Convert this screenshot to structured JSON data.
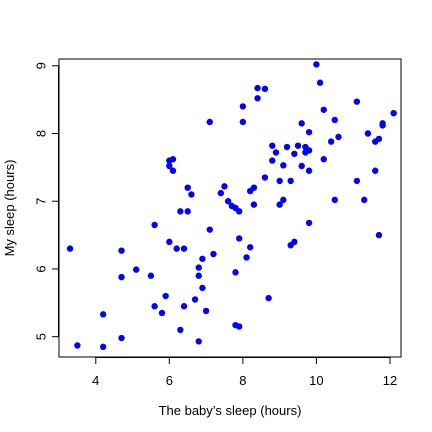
{
  "chart_data": {
    "type": "scatter",
    "title": "",
    "xlabel": "The baby’s sleep (hours)",
    "ylabel": "My sleep (hours)",
    "xlim": [
      3.0,
      12.3
    ],
    "ylim": [
      4.7,
      9.1
    ],
    "x_ticks": [
      "4",
      "6",
      "8",
      "10",
      "12"
    ],
    "x_tick_values": [
      4,
      6,
      8,
      10,
      12
    ],
    "y_ticks": [
      "5",
      "6",
      "7",
      "8",
      "9"
    ],
    "y_tick_values": [
      5,
      6,
      7,
      8,
      9
    ],
    "grid": false,
    "legend": "none",
    "point_color": "#0000ff",
    "series": [
      {
        "x": [
          3.3,
          3.5,
          4.2,
          4.2,
          4.7,
          4.7,
          4.7,
          5.1,
          5.5,
          5.6,
          5.6,
          5.8,
          5.9,
          6.0,
          6.0,
          6.0,
          6.1,
          6.1,
          6.2,
          6.3,
          6.3,
          6.4,
          6.4,
          6.5,
          6.5,
          6.6,
          6.7,
          6.8,
          6.8,
          6.8,
          6.9,
          6.9,
          7.0,
          7.1,
          7.1,
          7.2,
          7.4,
          7.5,
          7.6,
          7.7,
          7.8,
          7.8,
          7.8,
          7.9,
          7.9,
          7.9,
          8.0,
          8.0,
          8.1,
          8.2,
          8.2,
          8.3,
          8.3,
          8.4,
          8.4,
          8.6,
          8.6,
          8.7,
          8.8,
          8.8,
          8.9,
          9.0,
          9.0,
          9.1,
          9.1,
          9.2,
          9.3,
          9.3,
          9.4,
          9.4,
          9.5,
          9.6,
          9.6,
          9.7,
          9.7,
          9.8,
          9.8,
          9.8,
          9.8,
          10.0,
          10.1,
          10.2,
          10.2,
          10.4,
          10.5,
          10.5,
          10.6,
          11.1,
          11.1,
          11.3,
          11.4,
          11.6,
          11.6,
          11.7,
          11.7,
          11.8,
          11.8,
          12.1
        ],
        "y": [
          6.3,
          4.87,
          5.33,
          4.85,
          4.98,
          6.27,
          5.88,
          5.99,
          5.9,
          5.45,
          6.65,
          5.35,
          5.6,
          6.4,
          7.6,
          7.52,
          7.62,
          7.45,
          6.3,
          5.1,
          6.85,
          5.45,
          6.3,
          6.85,
          7.2,
          7.1,
          5.55,
          4.93,
          5.9,
          6.02,
          6.15,
          5.72,
          5.38,
          8.17,
          6.58,
          6.22,
          7.12,
          7.22,
          7.0,
          6.93,
          6.9,
          5.95,
          5.17,
          6.85,
          6.45,
          5.15,
          8.17,
          8.4,
          6.17,
          7.15,
          6.32,
          7.2,
          6.95,
          8.52,
          8.67,
          7.35,
          8.66,
          5.57,
          7.6,
          7.82,
          7.72,
          7.3,
          6.95,
          7.53,
          7.02,
          7.8,
          6.35,
          7.3,
          6.4,
          7.7,
          7.82,
          8.15,
          7.52,
          7.72,
          7.8,
          7.75,
          6.68,
          8.02,
          7.45,
          9.02,
          8.75,
          7.62,
          8.35,
          7.88,
          7.02,
          8.2,
          7.95,
          7.3,
          8.47,
          7.02,
          8.0,
          7.45,
          7.88,
          7.92,
          6.5,
          8.12,
          8.15,
          8.3
        ]
      }
    ]
  }
}
